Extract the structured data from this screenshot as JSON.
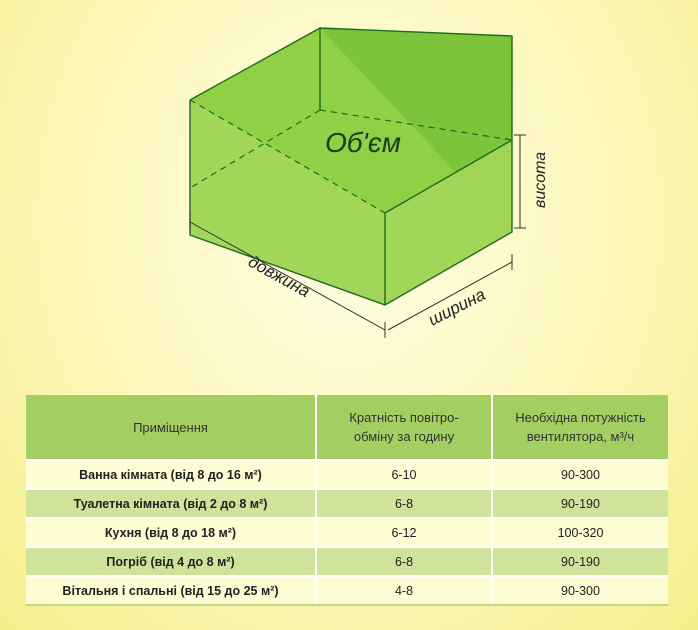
{
  "diagram": {
    "volume_label": "Об'єм",
    "height_label": "висота",
    "length_label": "довжина",
    "width_label": "ширина",
    "colors": {
      "box_fill": "#8fd045",
      "box_edge": "#1f6b1f"
    }
  },
  "table": {
    "headers": {
      "room": "Приміщення",
      "exchange_line1": "Кратність повітро-",
      "exchange_line2": "обміну за годину",
      "power_line1": "Необхідна потужність",
      "power_line2": "вентилятора, м³/ч"
    },
    "rows": [
      {
        "room": "Ванна кімната (від 8 до 16 м²)",
        "exchange": "6-10",
        "power": "90-300"
      },
      {
        "room": "Туалетна кімната (від 2 до 8 м²)",
        "exchange": "6-8",
        "power": "90-190"
      },
      {
        "room": "Кухня (від 8 до 18 м²)",
        "exchange": "6-12",
        "power": "100-320"
      },
      {
        "room": "Погріб (від 4 до 8 м²)",
        "exchange": "6-8",
        "power": "90-190"
      },
      {
        "room": "Вітальня і спальні (від 15 до 25 м²)",
        "exchange": "4-8",
        "power": "90-300"
      }
    ],
    "colors": {
      "header_bg": "#a3cf62",
      "row_light": "#fffbd2",
      "row_dark": "#cfe39a"
    }
  }
}
